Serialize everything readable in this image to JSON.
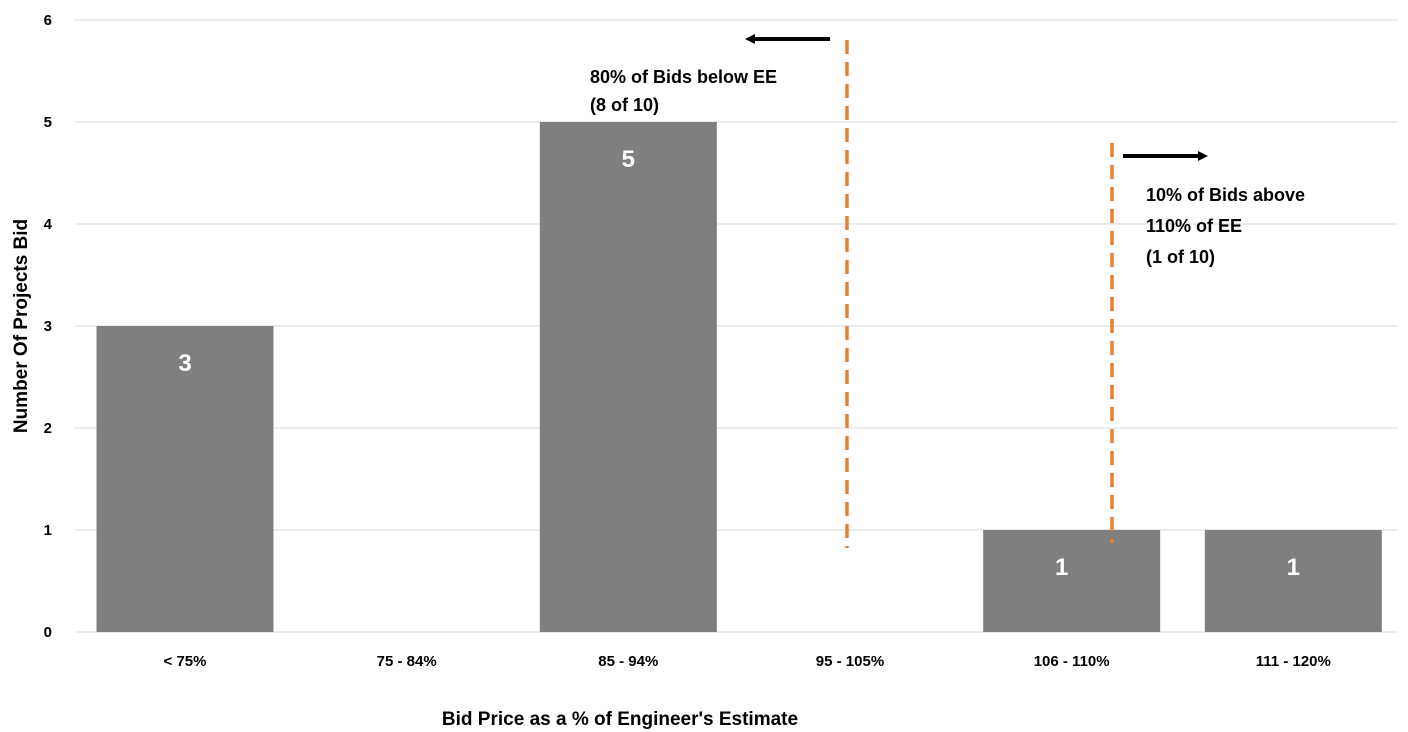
{
  "chart_data": {
    "type": "bar",
    "title": "",
    "xlabel": "Bid Price as a % of Engineer's Estimate",
    "ylabel": "Number Of Projects Bid",
    "categories": [
      "< 75%",
      "75 - 84%",
      "85 - 94%",
      "95 - 105%",
      "106 - 110%",
      "111 - 120%"
    ],
    "values": [
      3,
      0,
      5,
      0,
      1,
      1
    ],
    "data_labels": [
      "3",
      "",
      "5",
      "",
      "1",
      "1"
    ],
    "ylim": [
      0,
      6
    ],
    "yticks": [
      "0",
      "1",
      "2",
      "3",
      "4",
      "5",
      "6"
    ],
    "grid": true,
    "legend": "none",
    "colors": {
      "bar": "#7f7f7f",
      "gridline": "#d9d9d9",
      "threshold_line": "#ed7d31",
      "arrow": "#000000",
      "bar_label": "#ffffff"
    },
    "annotations": [
      {
        "lines": [
          "80% of Bids below EE",
          "(8 of 10)"
        ],
        "arrow_direction": "left"
      },
      {
        "lines": [
          "10% of Bids above",
          "110% of EE",
          "(1 of 10)"
        ],
        "arrow_direction": "right"
      }
    ]
  }
}
